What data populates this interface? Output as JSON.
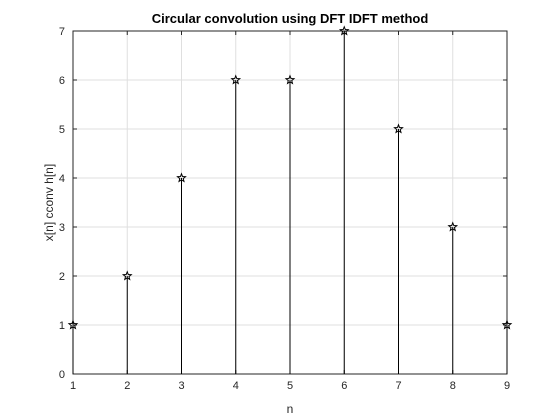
{
  "chart_data": {
    "type": "stem",
    "title": "Circular convolution using DFT IDFT method",
    "xlabel": "n",
    "ylabel": "x[n] cconv h[n]",
    "x": [
      1,
      2,
      3,
      4,
      5,
      6,
      7,
      8,
      9
    ],
    "values": [
      1,
      2,
      4,
      6,
      6,
      7,
      5,
      3,
      1
    ],
    "xlim": [
      1,
      9
    ],
    "ylim": [
      0,
      7
    ],
    "xticks": [
      "1",
      "2",
      "3",
      "4",
      "5",
      "6",
      "7",
      "8",
      "9"
    ],
    "yticks": [
      "0",
      "1",
      "2",
      "3",
      "4",
      "5",
      "6",
      "7"
    ],
    "grid": true,
    "marker": "pentagram",
    "colors": {
      "stem": "#000000",
      "grid": "#dfdfdf",
      "axis": "#262626",
      "background": "#ffffff"
    }
  }
}
